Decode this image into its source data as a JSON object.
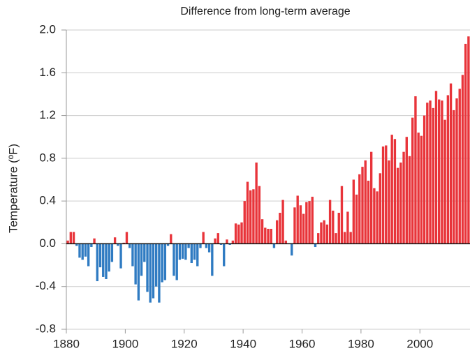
{
  "chart_data": {
    "type": "bar",
    "title": "Difference from long-term average",
    "y_label": "Temperature (ºF)",
    "x": [
      1880,
      1881,
      1882,
      1883,
      1884,
      1885,
      1886,
      1887,
      1888,
      1889,
      1890,
      1891,
      1892,
      1893,
      1894,
      1895,
      1896,
      1897,
      1898,
      1899,
      1900,
      1901,
      1902,
      1903,
      1904,
      1905,
      1906,
      1907,
      1908,
      1909,
      1910,
      1911,
      1912,
      1913,
      1914,
      1915,
      1916,
      1917,
      1918,
      1919,
      1920,
      1921,
      1922,
      1923,
      1924,
      1925,
      1926,
      1927,
      1928,
      1929,
      1930,
      1931,
      1932,
      1933,
      1934,
      1935,
      1936,
      1937,
      1938,
      1939,
      1940,
      1941,
      1942,
      1943,
      1944,
      1945,
      1946,
      1947,
      1948,
      1949,
      1950,
      1951,
      1952,
      1953,
      1954,
      1955,
      1956,
      1957,
      1958,
      1959,
      1960,
      1961,
      1962,
      1963,
      1964,
      1965,
      1966,
      1967,
      1968,
      1969,
      1970,
      1971,
      1972,
      1973,
      1974,
      1975,
      1976,
      1977,
      1978,
      1979,
      1980,
      1981,
      1982,
      1983,
      1984,
      1985,
      1986,
      1987,
      1988,
      1989,
      1990,
      1991,
      1992,
      1993,
      1994,
      1995,
      1996,
      1997,
      1998,
      1999,
      2000,
      2001,
      2002,
      2003,
      2004,
      2005,
      2006,
      2007,
      2008,
      2009,
      2010,
      2011,
      2012,
      2013,
      2014,
      2015,
      2016
    ],
    "values": [
      0.03,
      0.11,
      0.11,
      -0.02,
      -0.13,
      -0.15,
      -0.12,
      -0.21,
      -0.03,
      0.05,
      -0.35,
      -0.22,
      -0.31,
      -0.33,
      -0.26,
      -0.17,
      0.06,
      -0.02,
      -0.23,
      0.01,
      0.11,
      -0.04,
      -0.21,
      -0.38,
      -0.53,
      -0.3,
      -0.17,
      -0.45,
      -0.55,
      -0.51,
      -0.4,
      -0.55,
      -0.36,
      -0.34,
      -0.02,
      0.09,
      -0.3,
      -0.34,
      -0.15,
      -0.14,
      -0.15,
      -0.04,
      -0.18,
      -0.15,
      -0.21,
      -0.04,
      0.11,
      -0.04,
      -0.08,
      -0.3,
      0.05,
      0.1,
      -0.01,
      -0.21,
      0.04,
      -0.01,
      0.03,
      0.19,
      0.18,
      0.2,
      0.4,
      0.58,
      0.5,
      0.51,
      0.76,
      0.54,
      0.23,
      0.15,
      0.14,
      0.14,
      -0.04,
      0.22,
      0.29,
      0.41,
      0.03,
      0,
      -0.11,
      0.34,
      0.45,
      0.36,
      0.28,
      0.39,
      0.4,
      0.44,
      -0.03,
      0.1,
      0.2,
      0.22,
      0.18,
      0.41,
      0.31,
      0.1,
      0.29,
      0.54,
      0.11,
      0.3,
      0.11,
      0.6,
      0.46,
      0.65,
      0.72,
      0.78,
      0.59,
      0.86,
      0.52,
      0.49,
      0.66,
      0.91,
      0.92,
      0.78,
      1.02,
      0.98,
      0.71,
      0.76,
      0.86,
      1.0,
      0.82,
      1.18,
      1.38,
      1.04,
      1.01,
      1.2,
      1.32,
      1.34,
      1.27,
      1.43,
      1.35,
      1.34,
      1.16,
      1.39,
      1.5,
      1.25,
      1.36,
      1.45,
      1.58,
      1.87,
      1.94
    ],
    "positive_color": "#e8343a",
    "negative_color": "#2f7bc2",
    "xlim": [
      1880,
      2017
    ],
    "xticks": [
      1880,
      1900,
      1920,
      1940,
      1960,
      1980,
      2000
    ],
    "ylim": [
      -0.8,
      2.0
    ],
    "yticks": [
      {
        "value": -0.8,
        "label": "-0.8"
      },
      {
        "value": -0.4,
        "label": "-0.4"
      },
      {
        "value": 0,
        "label": "0.0"
      },
      0.4,
      0.8,
      1.2,
      1.6,
      {
        "value": 2,
        "label": "2.0"
      }
    ],
    "grid": true
  }
}
